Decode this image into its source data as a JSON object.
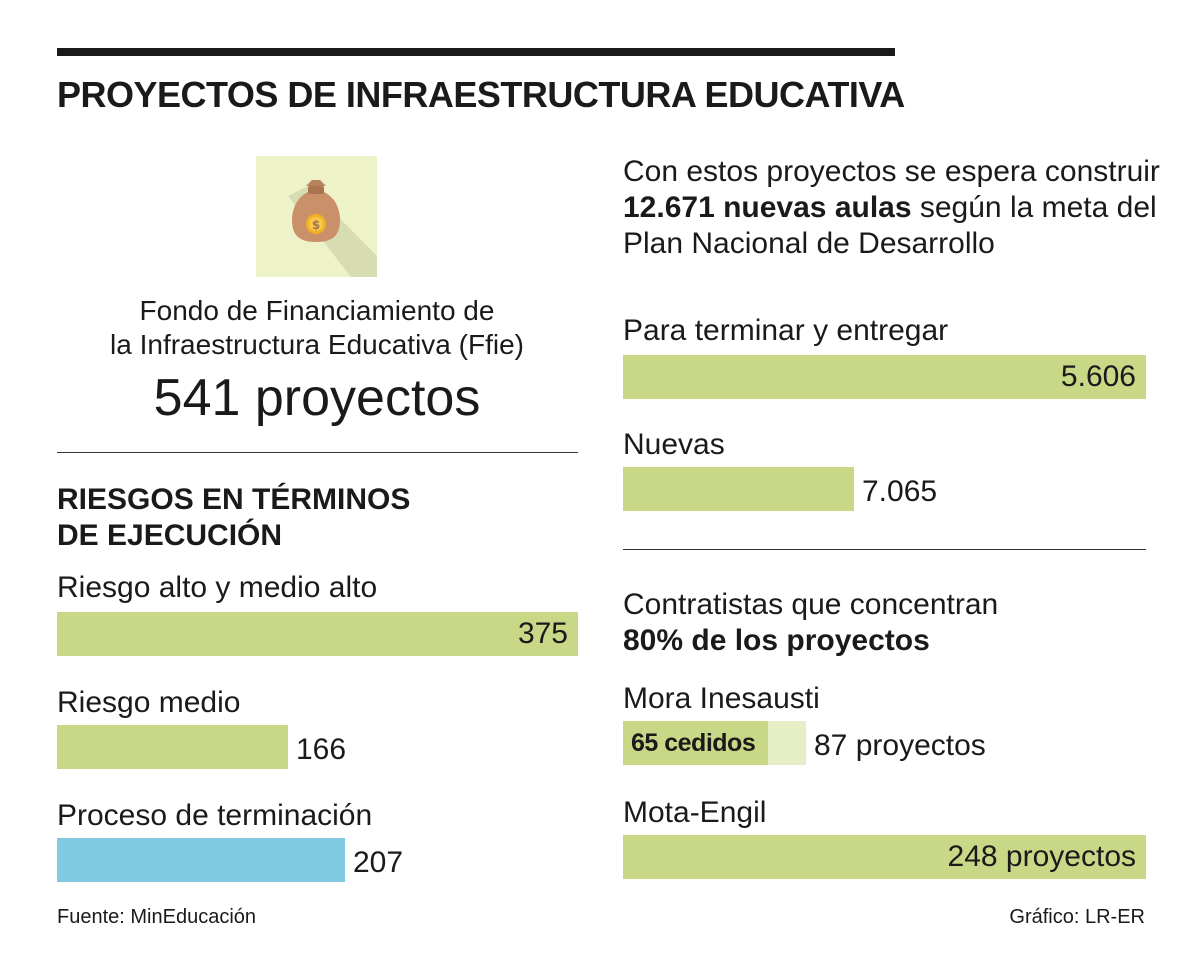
{
  "title": "PROYECTOS DE INFRAESTRUCTURA  EDUCATIVA",
  "icon": "money-bag-icon",
  "fund": {
    "name_line1": "Fondo de Financiamiento de",
    "name_line2": "la Infraestructura Educativa (Ffie)",
    "count_text": "541 proyectos"
  },
  "risk_section": {
    "title_line1": "RIESGOS EN TÉRMINOS",
    "title_line2": "DE EJECUCIÓN"
  },
  "intro": {
    "text1": "Con estos proyectos se espera construir ",
    "bold": "12.671 nuevas aulas",
    "text2": " según la meta del Plan Nacional de Desarrollo"
  },
  "contractors": {
    "title_line1": "Contratistas que concentran",
    "title_line2": "80% de los proyectos"
  },
  "colors": {
    "green": "#c8d887",
    "light_green": "#e6eec5",
    "blue": "#80cbe3"
  },
  "chart_data": [
    {
      "type": "bar",
      "categories": [
        "Riesgo alto y medio alto",
        "Riesgo medio",
        "Proceso de terminación"
      ],
      "values": [
        375,
        166,
        207
      ],
      "labels": [
        "375",
        "166",
        "207"
      ],
      "max": 375
    },
    {
      "type": "bar",
      "categories": [
        "Para terminar y entregar",
        "Nuevas"
      ],
      "values": [
        5606,
        7065
      ],
      "labels": [
        "5.606",
        "7.065"
      ]
    },
    {
      "type": "bar",
      "categories": [
        "Mora Inesausti",
        "Mota-Engil"
      ],
      "values": [
        87,
        248
      ],
      "labels": [
        "87 proyectos",
        "248 proyectos"
      ],
      "subvalues": [
        65,
        null
      ],
      "sublabels": [
        "65 cedidos",
        ""
      ],
      "max": 248
    }
  ],
  "footer": {
    "source": "Fuente: MinEducación",
    "credit": "Gráfico: LR-ER"
  }
}
